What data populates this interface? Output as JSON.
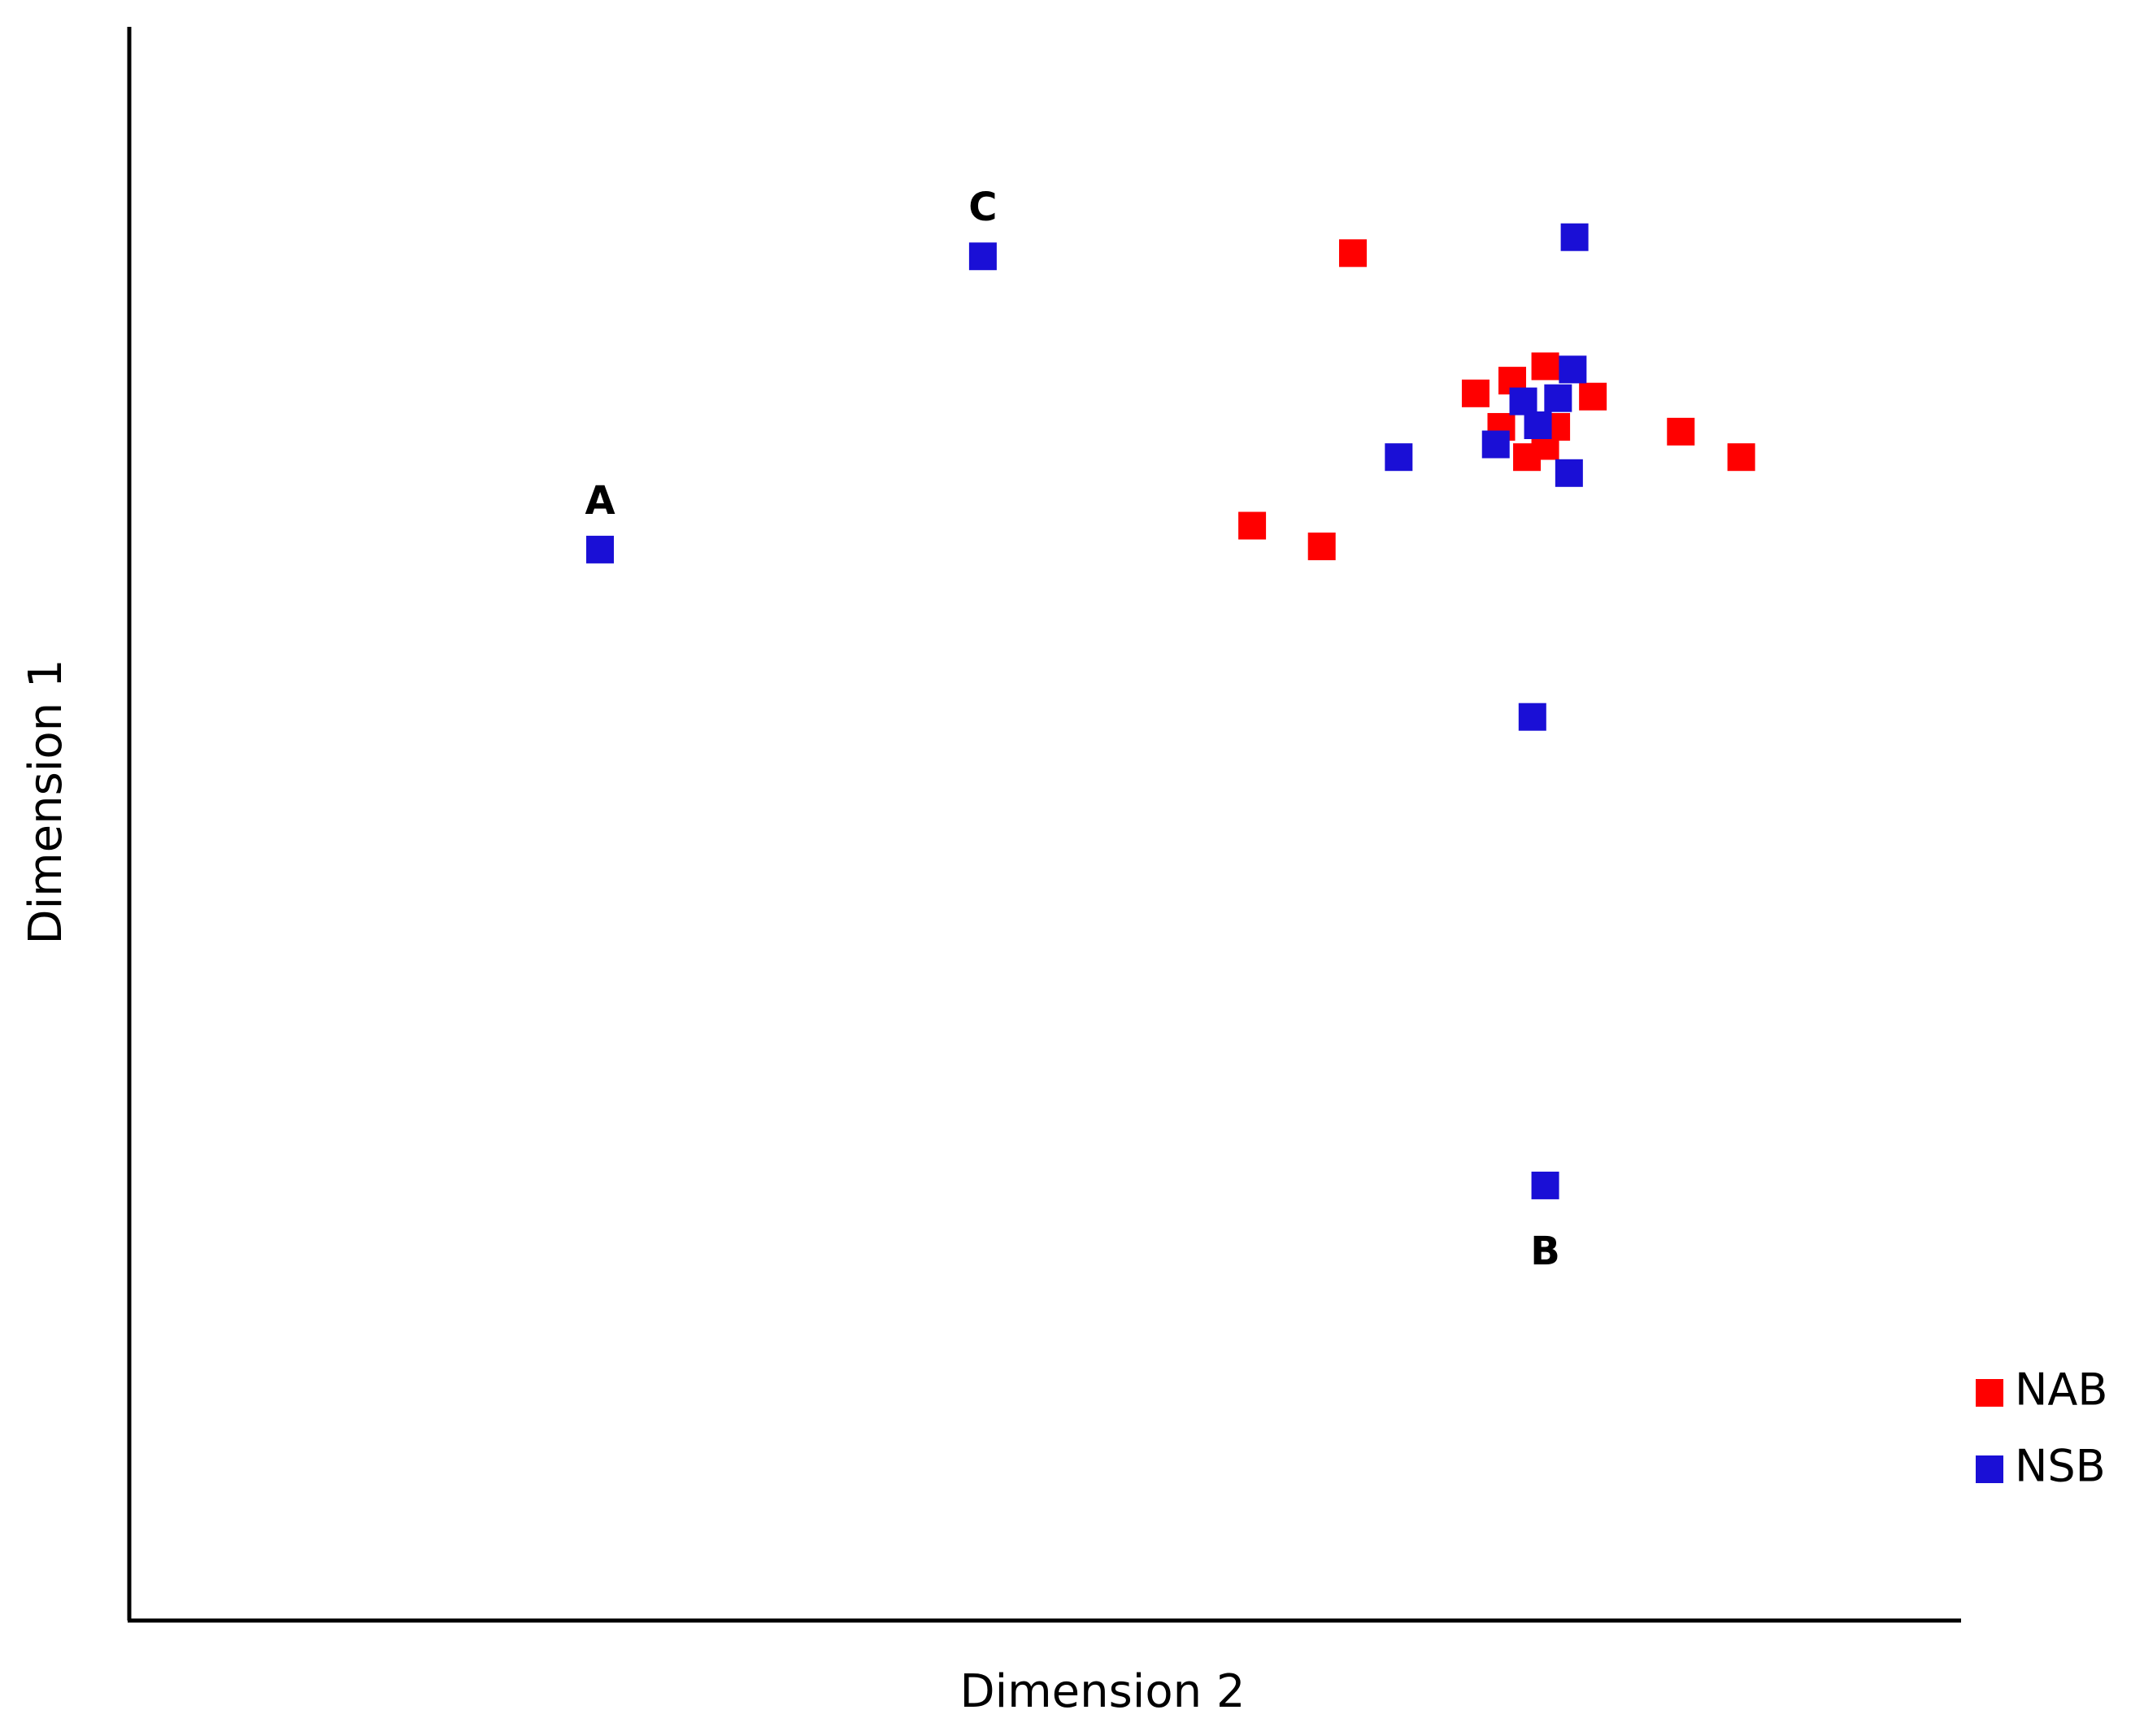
{
  "chart_data": {
    "type": "scatter",
    "xlabel": "Dimension 2",
    "ylabel": "Dimension 1",
    "xlim": [
      0,
      100
    ],
    "ylim": [
      0,
      100
    ],
    "legend": "lower right",
    "series": [
      {
        "name": "NAB",
        "color": "#ff0000",
        "x": [
          66.8,
          77.3,
          75.5,
          73.5,
          79.9,
          74.9,
          77.9,
          84.7,
          77.3,
          76.3,
          88.0,
          61.3,
          65.1
        ],
        "values": [
          85.8,
          78.7,
          77.8,
          77.0,
          76.8,
          74.9,
          74.9,
          74.6,
          73.7,
          73.0,
          73.0,
          68.7,
          67.4
        ]
      },
      {
        "name": "NSB",
        "color": "#1a0fd6",
        "x": [
          46.6,
          78.9,
          78.8,
          76.1,
          78.0,
          76.9,
          74.6,
          69.3,
          78.6,
          25.7,
          76.6,
          77.3
        ],
        "values": [
          85.6,
          86.8,
          78.5,
          76.5,
          76.7,
          75.0,
          73.8,
          73.0,
          72.0,
          67.2,
          56.7,
          27.3
        ],
        "point_labels": [
          "C",
          null,
          null,
          null,
          null,
          null,
          null,
          null,
          null,
          "A",
          null,
          "B"
        ]
      }
    ]
  }
}
